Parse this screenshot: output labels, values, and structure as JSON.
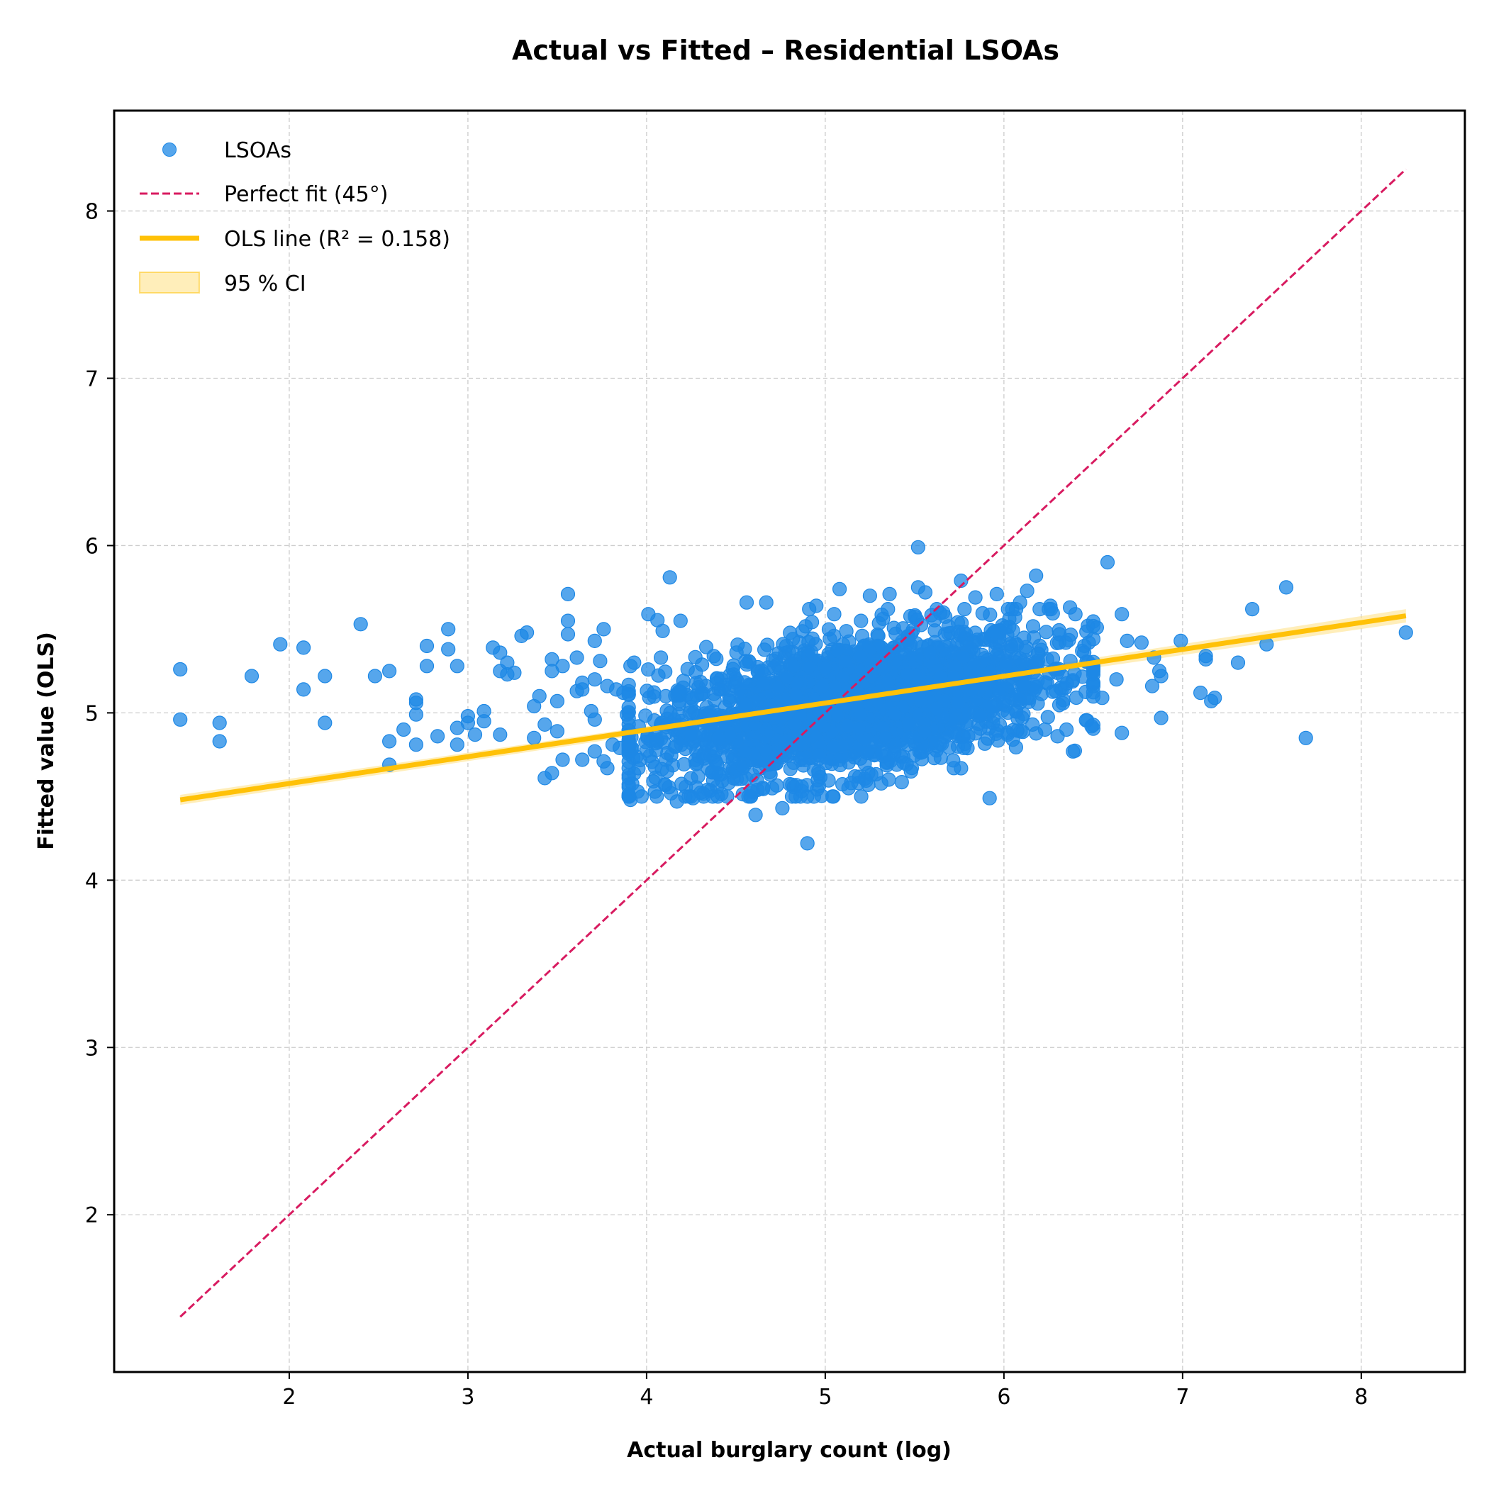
{
  "chart_data": {
    "type": "scatter",
    "title": "Actual vs Fitted – Residential LSOAs",
    "xlabel": "Actual burglary count (log)",
    "ylabel": "Fitted value (OLS)",
    "xlim": [
      1.02,
      8.58
    ],
    "ylim": [
      1.06,
      8.6
    ],
    "xticks": [
      2,
      3,
      4,
      5,
      6,
      7,
      8
    ],
    "yticks": [
      2,
      3,
      4,
      5,
      6,
      7,
      8
    ],
    "grid": true,
    "legend_position": "top-left",
    "legend": [
      {
        "label": "LSOAs",
        "kind": "scatter",
        "color": "#1e88e5"
      },
      {
        "label": "Perfect fit (45°)",
        "kind": "dashed-line",
        "color": "#d81b60"
      },
      {
        "label": "OLS line (R² = 0.158)",
        "kind": "line",
        "color": "#ffc107"
      },
      {
        "label": "95 % CI",
        "kind": "band",
        "color": "#ffc107"
      }
    ],
    "colors": {
      "points": "#1e88e5",
      "perfect_fit": "#d81b60",
      "ols": "#ffc107",
      "ci": "#ffe082"
    },
    "perfect_fit_line": {
      "x": [
        1.39,
        8.25
      ],
      "y": [
        1.39,
        8.25
      ]
    },
    "ols_line": {
      "x": [
        1.39,
        8.25
      ],
      "y": [
        4.48,
        5.58
      ],
      "r2": 0.158
    },
    "ci_band": {
      "x": [
        1.39,
        4.9,
        8.25
      ],
      "lower": [
        4.45,
        5.02,
        5.54
      ],
      "upper": [
        4.51,
        5.06,
        5.62
      ]
    },
    "cluster": {
      "center_x": 5.15,
      "center_y": 5.05,
      "spread_x": 0.55,
      "spread_y": 0.22,
      "correlation": 0.45,
      "count": 2500
    },
    "points": [
      [
        1.39,
        5.26
      ],
      [
        1.39,
        4.96
      ],
      [
        1.61,
        4.94
      ],
      [
        1.61,
        4.83
      ],
      [
        1.79,
        5.22
      ],
      [
        1.95,
        5.41
      ],
      [
        2.08,
        5.39
      ],
      [
        2.08,
        5.14
      ],
      [
        2.2,
        5.22
      ],
      [
        2.2,
        4.94
      ],
      [
        2.4,
        5.53
      ],
      [
        2.48,
        5.22
      ],
      [
        2.56,
        5.25
      ],
      [
        2.56,
        4.83
      ],
      [
        2.56,
        4.69
      ],
      [
        2.64,
        4.9
      ],
      [
        2.71,
        5.08
      ],
      [
        2.71,
        5.06
      ],
      [
        2.71,
        4.99
      ],
      [
        2.71,
        4.81
      ],
      [
        2.77,
        5.4
      ],
      [
        2.77,
        5.28
      ],
      [
        2.83,
        4.86
      ],
      [
        2.89,
        5.5
      ],
      [
        2.89,
        5.38
      ],
      [
        2.94,
        5.28
      ],
      [
        2.94,
        4.91
      ],
      [
        2.94,
        4.81
      ],
      [
        3.0,
        4.98
      ],
      [
        3.0,
        4.94
      ],
      [
        3.04,
        4.87
      ],
      [
        3.09,
        5.01
      ],
      [
        3.09,
        4.95
      ],
      [
        3.14,
        5.39
      ],
      [
        3.18,
        5.36
      ],
      [
        3.18,
        5.25
      ],
      [
        3.18,
        4.87
      ],
      [
        3.22,
        5.3
      ],
      [
        3.22,
        5.23
      ],
      [
        3.26,
        5.24
      ],
      [
        3.3,
        5.46
      ],
      [
        3.33,
        5.48
      ],
      [
        3.37,
        5.04
      ],
      [
        3.37,
        4.85
      ],
      [
        3.4,
        5.1
      ],
      [
        3.43,
        4.61
      ],
      [
        3.43,
        4.93
      ],
      [
        3.47,
        5.32
      ],
      [
        3.47,
        5.25
      ],
      [
        3.47,
        4.64
      ],
      [
        3.5,
        5.07
      ],
      [
        3.5,
        4.89
      ],
      [
        3.53,
        5.28
      ],
      [
        3.53,
        4.72
      ],
      [
        3.56,
        5.71
      ],
      [
        3.56,
        5.55
      ],
      [
        3.56,
        5.47
      ],
      [
        3.61,
        5.33
      ],
      [
        3.61,
        5.13
      ],
      [
        3.64,
        5.18
      ],
      [
        3.64,
        5.14
      ],
      [
        3.64,
        4.72
      ],
      [
        3.69,
        5.01
      ],
      [
        3.71,
        5.43
      ],
      [
        3.71,
        5.2
      ],
      [
        3.71,
        4.96
      ],
      [
        3.71,
        4.77
      ],
      [
        3.74,
        5.31
      ],
      [
        3.76,
        5.5
      ],
      [
        3.76,
        4.71
      ],
      [
        3.78,
        5.16
      ],
      [
        3.78,
        4.67
      ],
      [
        3.81,
        4.81
      ],
      [
        3.83,
        5.14
      ],
      [
        3.85,
        4.79
      ],
      [
        3.87,
        5.12
      ],
      [
        3.89,
        4.99
      ],
      [
        3.91,
        5.28
      ],
      [
        3.91,
        4.48
      ],
      [
        3.93,
        5.3
      ],
      [
        3.95,
        4.53
      ],
      [
        4.01,
        5.59
      ],
      [
        4.08,
        5.33
      ],
      [
        4.09,
        5.49
      ],
      [
        4.13,
        5.81
      ],
      [
        4.17,
        4.47
      ],
      [
        4.19,
        5.55
      ],
      [
        4.26,
        4.49
      ],
      [
        4.37,
        4.5
      ],
      [
        4.56,
        5.66
      ],
      [
        4.61,
        4.39
      ],
      [
        4.67,
        5.66
      ],
      [
        4.76,
        4.43
      ],
      [
        4.9,
        4.22
      ],
      [
        4.95,
        5.64
      ],
      [
        5.05,
        5.59
      ],
      [
        5.08,
        5.74
      ],
      [
        5.13,
        4.55
      ],
      [
        5.2,
        5.55
      ],
      [
        5.25,
        5.7
      ],
      [
        5.36,
        5.71
      ],
      [
        5.4,
        4.69
      ],
      [
        5.48,
        4.65
      ],
      [
        5.52,
        5.99
      ],
      [
        5.52,
        5.75
      ],
      [
        5.56,
        5.72
      ],
      [
        5.61,
        4.73
      ],
      [
        5.66,
        5.6
      ],
      [
        5.72,
        4.67
      ],
      [
        5.76,
        5.79
      ],
      [
        5.8,
        4.86
      ],
      [
        5.84,
        5.69
      ],
      [
        5.92,
        4.49
      ],
      [
        5.96,
        5.71
      ],
      [
        6.02,
        4.87
      ],
      [
        6.05,
        4.84
      ],
      [
        6.09,
        5.66
      ],
      [
        6.13,
        5.73
      ],
      [
        6.16,
        4.93
      ],
      [
        6.18,
        5.82
      ],
      [
        6.2,
        5.62
      ],
      [
        6.23,
        4.9
      ],
      [
        6.26,
        5.64
      ],
      [
        6.3,
        4.86
      ],
      [
        6.31,
        5.42
      ],
      [
        6.35,
        4.9
      ],
      [
        6.37,
        5.63
      ],
      [
        6.4,
        5.59
      ],
      [
        6.45,
        5.4
      ],
      [
        6.47,
        5.52
      ],
      [
        6.49,
        4.92
      ],
      [
        6.52,
        5.51
      ],
      [
        6.55,
        5.09
      ],
      [
        6.58,
        5.9
      ],
      [
        6.63,
        5.2
      ],
      [
        6.66,
        5.59
      ],
      [
        6.66,
        4.88
      ],
      [
        6.69,
        5.43
      ],
      [
        6.77,
        5.42
      ],
      [
        6.83,
        5.16
      ],
      [
        6.84,
        5.33
      ],
      [
        6.87,
        5.25
      ],
      [
        6.88,
        5.22
      ],
      [
        6.88,
        4.97
      ],
      [
        6.99,
        5.43
      ],
      [
        7.1,
        5.12
      ],
      [
        7.13,
        5.34
      ],
      [
        7.13,
        5.32
      ],
      [
        7.16,
        5.07
      ],
      [
        7.18,
        5.09
      ],
      [
        7.31,
        5.3
      ],
      [
        7.39,
        5.62
      ],
      [
        7.47,
        5.41
      ],
      [
        7.58,
        5.75
      ],
      [
        7.69,
        4.85
      ],
      [
        8.25,
        5.48
      ]
    ]
  }
}
